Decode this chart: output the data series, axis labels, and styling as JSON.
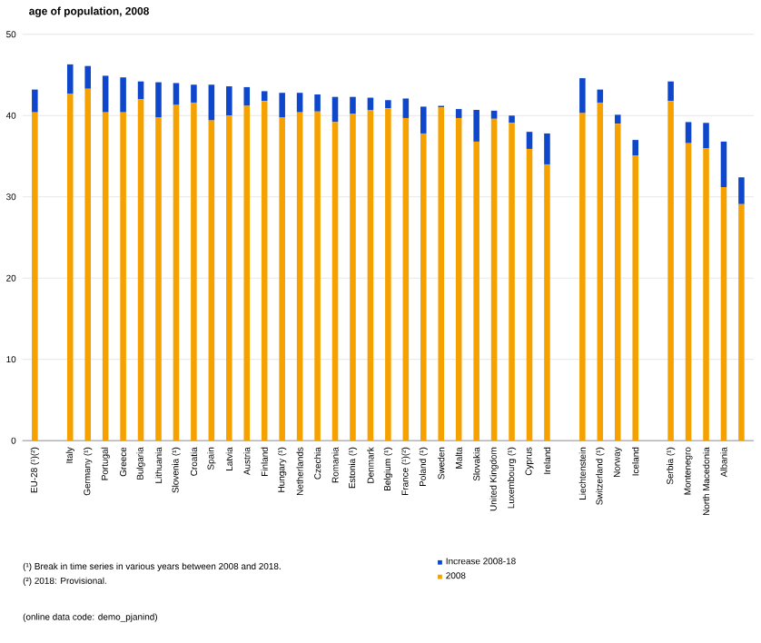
{
  "chart_data": {
    "type": "bar",
    "stacked": true,
    "title": "age of population, 2008",
    "categories": [
      "EU-28 (¹)(²)",
      null,
      "Italy",
      "Germany (¹)",
      "Portugal",
      "Greece",
      "Bulgaria",
      "Lithuania",
      "Slovenia (¹)",
      "Croatia",
      "Spain",
      "Latvia",
      "Austria",
      "Finland",
      "Hungary (¹)",
      "Netherlands",
      "Czechia",
      "Romania",
      "Estonia (¹)",
      "Denmark",
      "Belgium (¹)",
      "France (¹)(²)",
      "Poland (¹)",
      "Sweden",
      "Malta",
      "Slovakia",
      "United Kingdom",
      "Luxembourg (¹)",
      "Cyprus",
      "Ireland",
      null,
      "Liechtenstein",
      "Switzerland (¹)",
      "Norway",
      "Iceland",
      null,
      "Serbia (¹)",
      "Montenegro",
      "North Macedonia",
      "Albania",
      null
    ],
    "series": [
      {
        "name": "2008",
        "color": "#f5a100",
        "values": [
          40.4,
          null,
          42.7,
          43.3,
          40.4,
          40.4,
          42.0,
          39.8,
          41.3,
          41.6,
          39.4,
          40.0,
          41.2,
          41.8,
          39.8,
          40.4,
          40.5,
          39.2,
          40.2,
          40.7,
          40.9,
          39.7,
          37.8,
          41.0,
          39.7,
          36.8,
          39.6,
          39.1,
          35.9,
          34.0,
          null,
          40.3,
          41.6,
          39.0,
          35.1,
          null,
          41.8,
          36.6,
          36.0,
          31.2,
          29.1
        ]
      },
      {
        "name": "Increase 2008-18",
        "color": "#0e47cb",
        "values": [
          2.8,
          null,
          3.6,
          2.8,
          4.5,
          4.3,
          2.2,
          4.3,
          2.7,
          2.2,
          4.4,
          3.6,
          2.3,
          1.2,
          3.0,
          2.4,
          2.1,
          3.1,
          2.1,
          1.5,
          1.0,
          2.4,
          3.3,
          0.2,
          1.1,
          3.9,
          1.0,
          0.9,
          2.1,
          3.8,
          null,
          4.3,
          1.6,
          1.1,
          1.9,
          null,
          2.4,
          2.6,
          3.1,
          5.6,
          3.3
        ]
      }
    ],
    "ylim": [
      0,
      50
    ],
    "yticks": [
      0,
      10,
      20,
      30,
      40,
      50
    ],
    "grid": "y",
    "legend": "bottom",
    "annotations": [
      "(¹) Break in time series in various years between 2008 and 2018.",
      "(²) 2018: Provisional.",
      "(online data code: demo_pjanind)"
    ]
  }
}
